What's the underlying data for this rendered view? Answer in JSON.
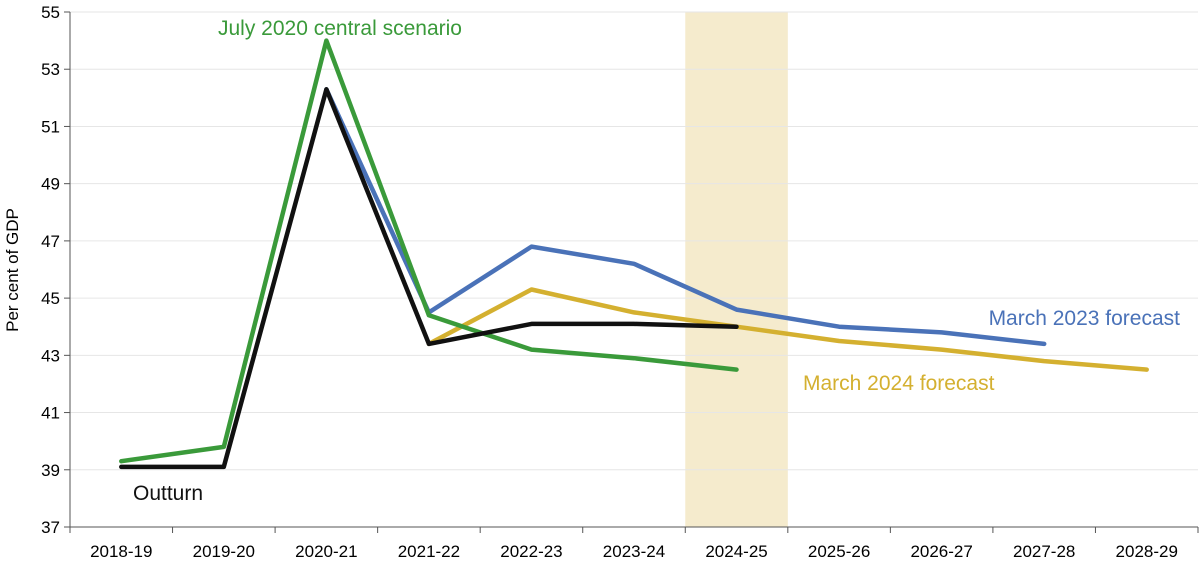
{
  "chart_data": {
    "type": "line",
    "ylabel": "Per cent of GDP",
    "ylim": [
      37,
      55
    ],
    "yticks": [
      37,
      39,
      41,
      43,
      45,
      47,
      49,
      51,
      53,
      55
    ],
    "categories": [
      "2018-19",
      "2019-20",
      "2020-21",
      "2021-22",
      "2022-23",
      "2023-24",
      "2024-25",
      "2025-26",
      "2026-27",
      "2027-28",
      "2028-29"
    ],
    "highlight": {
      "category": "2024-25",
      "color": "#f5ebcd"
    },
    "grid": "horizontal",
    "series": [
      {
        "name": "March 2023 forecast",
        "color": "#4a72b8",
        "values": [
          null,
          null,
          52.3,
          44.5,
          46.8,
          46.2,
          44.6,
          44.0,
          43.8,
          43.4,
          null
        ]
      },
      {
        "name": "March 2024 forecast",
        "color": "#d4b030",
        "values": [
          null,
          null,
          null,
          43.4,
          45.3,
          44.5,
          44.0,
          43.5,
          43.2,
          42.8,
          42.5
        ]
      },
      {
        "name": "July 2020 central scenario",
        "color": "#3a9a3a",
        "values": [
          39.3,
          39.8,
          54.0,
          44.4,
          43.2,
          42.9,
          42.5,
          null,
          null,
          null,
          null
        ]
      },
      {
        "name": "Outturn",
        "color": "#111111",
        "values": [
          39.1,
          39.1,
          52.3,
          43.4,
          44.1,
          44.1,
          44.0,
          null,
          null,
          null,
          null
        ]
      }
    ]
  }
}
